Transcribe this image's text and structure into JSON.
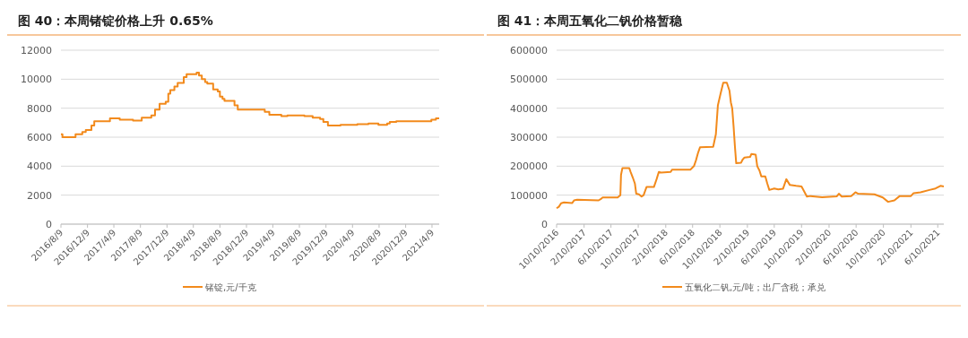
{
  "chart_data": [
    {
      "type": "step",
      "title": "图 40：本周锗锭价格上升 0.65%",
      "xlim": [
        "2016-08-09",
        "2021-05-12"
      ],
      "ylim": [
        0,
        12000
      ],
      "yticks": [
        0,
        2000,
        4000,
        6000,
        8000,
        10000,
        12000
      ],
      "xticks": [
        {
          "value": "2016-08-09",
          "label": "2016/8/9"
        },
        {
          "value": "2016-12-09",
          "label": "2016/12/9"
        },
        {
          "value": "2017-04-09",
          "label": "2017/4/9"
        },
        {
          "value": "2017-08-09",
          "label": "2017/8/9"
        },
        {
          "value": "2017-12-09",
          "label": "2017/12/9"
        },
        {
          "value": "2018-04-09",
          "label": "2018/4/9"
        },
        {
          "value": "2018-08-09",
          "label": "2018/8/9"
        },
        {
          "value": "2018-12-09",
          "label": "2018/12/9"
        },
        {
          "value": "2019-04-09",
          "label": "2019/4/9"
        },
        {
          "value": "2019-08-09",
          "label": "2019/8/9"
        },
        {
          "value": "2019-12-09",
          "label": "2019/12/9"
        },
        {
          "value": "2020-04-09",
          "label": "2020/4/9"
        },
        {
          "value": "2020-08-09",
          "label": "2020/8/9"
        },
        {
          "value": "2020-12-09",
          "label": "2020/12/9"
        },
        {
          "value": "2021-04-09",
          "label": "2021/4/9"
        }
      ],
      "grid": "y",
      "legend": "bottom",
      "series": [
        {
          "name": "锗锭,元/千克",
          "color": "#f28a1c",
          "x": [
            "2016-08-09",
            "2016-08-16",
            "2016-10-15",
            "2016-11-15",
            "2016-12-01",
            "2016-12-27",
            "2017-01-09",
            "2017-03-22",
            "2017-05-06",
            "2017-07-06",
            "2017-08-15",
            "2017-09-28",
            "2017-10-15",
            "2017-11-05",
            "2017-12-03",
            "2017-12-15",
            "2017-12-24",
            "2018-01-12",
            "2018-01-27",
            "2018-02-24",
            "2018-03-09",
            "2018-04-24",
            "2018-05-05",
            "2018-05-18",
            "2018-06-02",
            "2018-06-12",
            "2018-07-09",
            "2018-07-30",
            "2018-08-09",
            "2018-08-21",
            "2018-08-30",
            "2018-10-15",
            "2018-10-30",
            "2019-03-03",
            "2019-03-24",
            "2019-05-18",
            "2019-06-15",
            "2019-09-01",
            "2019-10-09",
            "2019-11-12",
            "2019-11-27",
            "2019-12-18",
            "2020-02-14",
            "2020-05-01",
            "2020-06-21",
            "2020-08-06",
            "2020-09-15",
            "2020-09-27",
            "2020-10-27",
            "2021-04-06",
            "2021-04-27",
            "2021-05-12"
          ],
          "values": [
            6200,
            6000,
            6200,
            6350,
            6500,
            6800,
            7100,
            7300,
            7200,
            7150,
            7350,
            7500,
            7900,
            8300,
            8450,
            9000,
            9250,
            9500,
            9750,
            10150,
            10350,
            10450,
            10250,
            10000,
            9800,
            9700,
            9300,
            9150,
            8800,
            8650,
            8500,
            8200,
            7900,
            7750,
            7550,
            7450,
            7500,
            7450,
            7350,
            7250,
            7050,
            6800,
            6850,
            6900,
            6950,
            6850,
            6950,
            7050,
            7100,
            7200,
            7300,
            7300
          ]
        }
      ]
    },
    {
      "type": "line",
      "title": "图 41：本周五氧化二钒价格暂稳",
      "xlim": [
        "2016-10-10",
        "2021-07-07"
      ],
      "ylim": [
        0,
        600000
      ],
      "yticks": [
        0,
        100000,
        200000,
        300000,
        400000,
        500000,
        600000
      ],
      "xticks": [
        {
          "value": "2016-10-10",
          "label": "10/10/2016"
        },
        {
          "value": "2017-02-10",
          "label": "2/10/2017"
        },
        {
          "value": "2017-06-10",
          "label": "6/10/2017"
        },
        {
          "value": "2017-10-10",
          "label": "10/10/2017"
        },
        {
          "value": "2018-02-10",
          "label": "2/10/2018"
        },
        {
          "value": "2018-06-10",
          "label": "6/10/2018"
        },
        {
          "value": "2018-10-10",
          "label": "10/10/2018"
        },
        {
          "value": "2019-02-10",
          "label": "2/10/2019"
        },
        {
          "value": "2019-06-10",
          "label": "6/10/2019"
        },
        {
          "value": "2019-10-10",
          "label": "10/10/2019"
        },
        {
          "value": "2020-02-10",
          "label": "2/10/2020"
        },
        {
          "value": "2020-06-10",
          "label": "6/10/2020"
        },
        {
          "value": "2020-10-10",
          "label": "10/10/2020"
        },
        {
          "value": "2021-02-10",
          "label": "2/10/2021"
        },
        {
          "value": "2021-06-10",
          "label": "6/10/2021"
        }
      ],
      "grid": "y",
      "legend": "bottom",
      "series": [
        {
          "name": "五氧化二钒,元/吨；出厂含税；承兑",
          "color": "#f28a1c",
          "x": [
            "2016-10-10",
            "2016-10-20",
            "2016-10-30",
            "2016-11-12",
            "2016-12-19",
            "2016-12-27",
            "2017-01-10",
            "2017-04-16",
            "2017-04-28",
            "2017-05-04",
            "2017-07-10",
            "2017-07-22",
            "2017-07-25",
            "2017-07-31",
            "2017-08-31",
            "2017-09-06",
            "2017-09-16",
            "2017-09-25",
            "2017-10-01",
            "2017-10-13",
            "2017-10-25",
            "2017-11-03",
            "2017-11-16",
            "2017-12-19",
            "2017-12-31",
            "2018-01-10",
            "2018-01-20",
            "2018-03-04",
            "2018-03-10",
            "2018-05-31",
            "2018-06-16",
            "2018-06-25",
            "2018-07-04",
            "2018-07-13",
            "2018-09-10",
            "2018-09-22",
            "2018-10-01",
            "2018-10-13",
            "2018-10-25",
            "2018-11-10",
            "2018-11-22",
            "2018-11-28",
            "2018-12-04",
            "2018-12-10",
            "2018-12-16",
            "2018-12-22",
            "2019-01-13",
            "2019-01-19",
            "2019-01-28",
            "2019-02-22",
            "2019-02-28",
            "2019-03-19",
            "2019-03-26",
            "2019-04-05",
            "2019-04-13",
            "2019-05-01",
            "2019-05-10",
            "2019-05-19",
            "2019-06-10",
            "2019-06-28",
            "2019-07-19",
            "2019-08-03",
            "2019-08-19",
            "2019-09-16",
            "2019-10-10",
            "2019-11-03",
            "2019-11-19",
            "2020-01-10",
            "2020-03-16",
            "2020-03-25",
            "2020-04-07",
            "2020-05-19",
            "2020-06-07",
            "2020-06-19",
            "2020-08-31",
            "2020-10-07",
            "2020-10-31",
            "2020-11-28",
            "2020-12-22",
            "2021-02-10",
            "2021-02-22",
            "2021-03-25",
            "2021-05-04",
            "2021-05-31",
            "2021-06-22",
            "2021-07-07"
          ],
          "values": [
            55000,
            60000,
            72000,
            75000,
            73000,
            82000,
            84000,
            82000,
            88000,
            92000,
            92000,
            100000,
            170000,
            193000,
            193000,
            180000,
            160000,
            140000,
            105000,
            103000,
            95000,
            100000,
            128000,
            128000,
            155000,
            180000,
            178000,
            180000,
            188000,
            188000,
            200000,
            220000,
            245000,
            265000,
            267000,
            310000,
            410000,
            450000,
            488000,
            488000,
            460000,
            420000,
            400000,
            340000,
            270000,
            210000,
            212000,
            222000,
            230000,
            232000,
            242000,
            240000,
            200000,
            185000,
            165000,
            165000,
            140000,
            118000,
            123000,
            120000,
            122000,
            155000,
            135000,
            132000,
            130000,
            95000,
            97000,
            93000,
            96000,
            105000,
            95000,
            97000,
            110000,
            105000,
            103000,
            92000,
            77000,
            82000,
            97000,
            97000,
            107000,
            110000,
            118000,
            123000,
            132000,
            130000
          ]
        }
      ]
    }
  ]
}
